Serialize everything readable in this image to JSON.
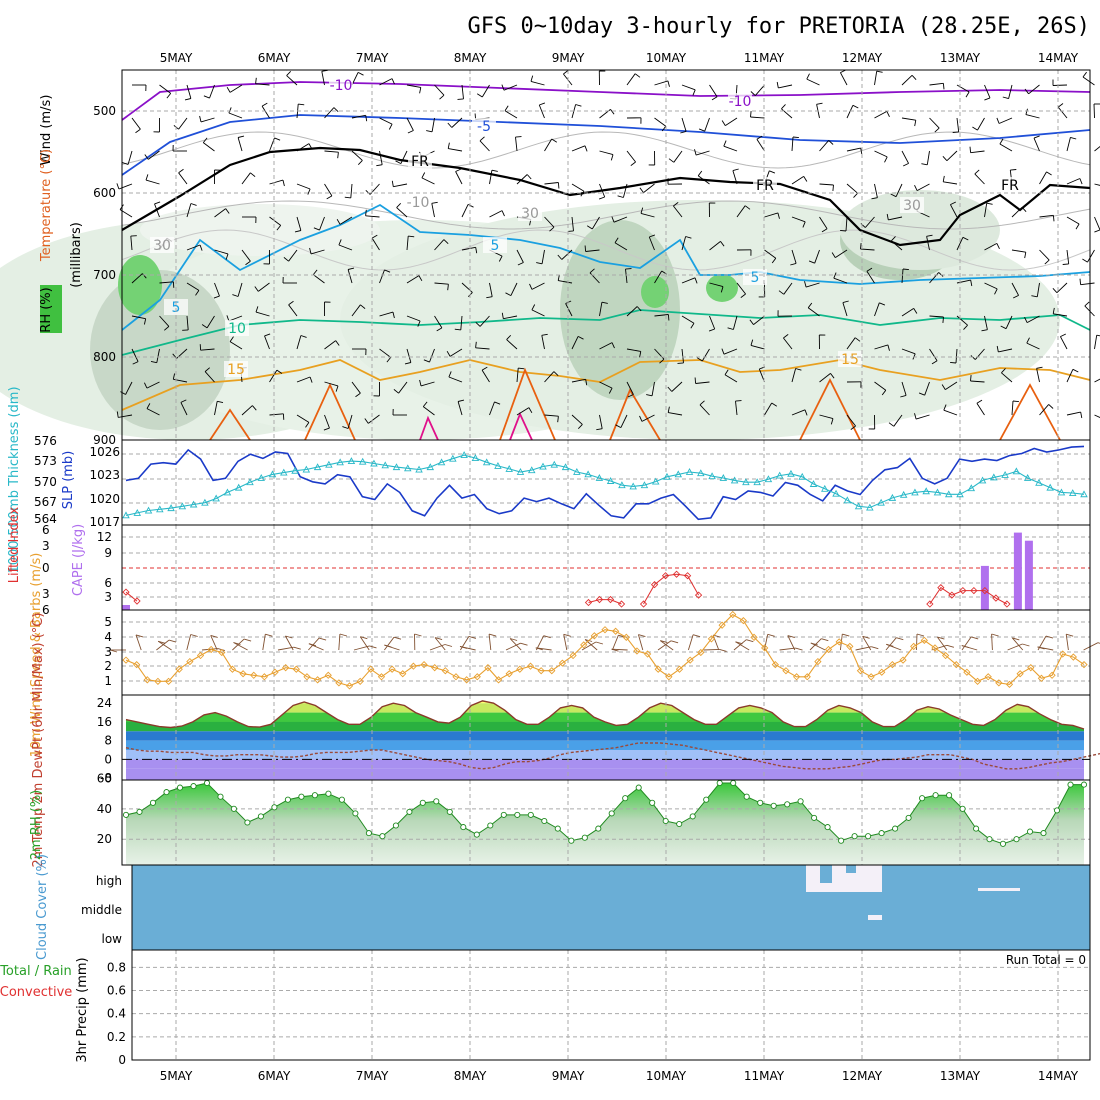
{
  "title": "GFS 0~10day 3-hourly for PRETORIA (28.25E, 26S)",
  "colors": {
    "purple_isotherm": "#8a10c8",
    "blue_isotherm": "#2050d8",
    "lightblue_isotherm": "#1aa0e0",
    "teal_isotherm": "#10b88a",
    "orange_isotherm": "#e8a020",
    "darkorange_isotherm": "#e86010",
    "magenta_isotherm": "#e0108a",
    "slp_line": "#1a3ac8",
    "thickness_line": "#28b8c8",
    "cape_bar": "#b070ee",
    "lifted_index": "#e03030",
    "wind_speed": "#e8a030",
    "barbs": "#805030",
    "temp_line": "#8a3a2a",
    "dewpoint": "#9a4a3a",
    "rh_fill": "#3ac83a",
    "cloud": "#6aaed6"
  },
  "chart_data": [
    {
      "type": "heatmap",
      "panel": "cross_section",
      "ylabel": "(millibars)",
      "legend_labels": [
        "RH (%)",
        "Temperature (°C)",
        "Wind (m/s)"
      ],
      "y_ticks": [
        "500",
        "600",
        "700",
        "800",
        "900"
      ],
      "contour_labels": [
        "-10",
        "-10",
        "-5",
        "FR",
        "FR",
        "FR",
        "-10",
        "30",
        "30",
        "30",
        "5",
        "5",
        "5",
        "10",
        "15",
        "15"
      ]
    },
    {
      "type": "line",
      "panel": "slp_thickness",
      "ylabel_left": "1000-500mb Thickness (dm)",
      "ylabel_right": "SLP (mb)",
      "left_ticks": [
        "576",
        "573",
        "570",
        "567",
        "564"
      ],
      "right_ticks": [
        "1026",
        "1023",
        "1020",
        "1017"
      ],
      "series": [
        {
          "name": "SLP (mb)",
          "values": [
            1022.5,
            1022.8,
            1024.8,
            1025.0,
            1024.8,
            1026.8,
            1025.5,
            1022.5,
            1022.8,
            1025.2,
            1026.2,
            1025.6,
            1026.5,
            1026.3,
            1023.0,
            1022.3,
            1022.0,
            1023.3,
            1023.0,
            1020.2,
            1019.8,
            1022.0,
            1020.8,
            1018.2,
            1017.5,
            1020.0,
            1021.8,
            1020.0,
            1020.5,
            1018.5,
            1017.8,
            1018.2,
            1020.0,
            1019.5,
            1020.0,
            1019.2,
            1018.5,
            1020.6,
            1019.0,
            1017.5,
            1017.2,
            1019.2,
            1019.2,
            1020.0,
            1020.5,
            1018.8,
            1017.0,
            1017.2,
            1020.2,
            1019.8,
            1021.0,
            1020.8,
            1020.3,
            1022.2,
            1021.8,
            1020.5,
            1019.6,
            1021.8,
            1021.0,
            1020.5,
            1022.5,
            1024.0,
            1024.3,
            1025.6,
            1022.8,
            1022.0,
            1022.8,
            1025.5,
            1025.2,
            1025.5,
            1025.3,
            1026.0,
            1026.3,
            1027.0,
            1026.5,
            1026.8,
            1027.2,
            1027.3
          ]
        },
        {
          "name": "1000-500mb Thickness (dm)",
          "values": [
            564.8,
            565.2,
            565.6,
            565.8,
            566.0,
            566.3,
            566.6,
            566.9,
            567.6,
            568.6,
            569.4,
            570.3,
            571.0,
            571.6,
            571.9,
            572.2,
            572.4,
            572.8,
            573.2,
            573.6,
            573.8,
            573.7,
            573.4,
            573.1,
            572.8,
            572.6,
            572.4,
            572.8,
            573.6,
            574.2,
            574.8,
            574.3,
            573.6,
            573.0,
            572.5,
            572.0,
            572.3,
            572.9,
            573.2,
            572.8,
            572.0,
            571.6,
            571.0,
            570.5,
            569.8,
            569.6,
            569.8,
            570.4,
            571.2,
            571.6,
            572.0,
            571.8,
            571.3,
            571.0,
            570.6,
            570.3,
            570.3,
            570.8,
            571.4,
            571.7,
            571.2,
            570.0,
            569.2,
            568.4,
            567.3,
            566.3,
            566.1,
            566.9,
            567.7,
            568.2,
            568.6,
            568.8,
            568.6,
            568.3,
            568.3,
            569.3,
            570.6,
            571.1,
            571.5,
            572.1,
            571.0,
            570.2,
            569.4,
            568.6,
            568.5,
            568.3
          ]
        }
      ]
    },
    {
      "type": "bar",
      "panel": "cape_lifted",
      "ylabel_left": "Lifted Index",
      "ylabel_right": "CAPE (J/kg)",
      "left_ticks": [
        "6",
        "3",
        "0",
        "3",
        "6"
      ],
      "right_ticks": [
        "12",
        "9",
        "6",
        "3"
      ],
      "series": [
        {
          "name": "CAPE (J/kg)",
          "values": [
            0.8,
            0,
            0,
            0,
            0,
            0,
            0,
            0,
            0,
            0,
            0,
            0,
            0,
            0,
            0,
            0,
            0,
            0,
            0,
            0,
            0,
            0,
            0,
            0,
            0,
            0,
            0,
            0,
            0,
            0,
            0,
            0,
            0,
            0,
            0,
            0,
            0,
            0,
            0,
            0,
            0,
            0,
            0,
            0,
            0,
            0,
            0,
            0,
            0,
            0,
            0,
            0,
            0,
            0,
            0,
            0,
            0,
            0,
            0,
            0,
            0,
            0,
            0,
            0,
            0,
            0,
            0,
            0,
            0,
            0,
            0,
            0,
            0,
            0,
            0,
            0,
            0,
            0,
            7.0,
            0,
            0,
            12.3,
            11.0,
            0,
            0,
            0,
            0,
            0
          ]
        },
        {
          "name": "Lifted Index",
          "values": [
            5.1,
            5.7,
            null,
            null,
            null,
            null,
            null,
            null,
            null,
            null,
            null,
            null,
            null,
            null,
            null,
            null,
            null,
            null,
            null,
            null,
            null,
            null,
            null,
            null,
            null,
            null,
            null,
            null,
            null,
            null,
            null,
            null,
            null,
            null,
            null,
            null,
            null,
            null,
            null,
            null,
            null,
            null,
            5.8,
            5.6,
            5.6,
            5.9,
            null,
            5.9,
            4.6,
            4.0,
            3.9,
            4.0,
            5.3,
            null,
            null,
            null,
            null,
            null,
            null,
            null,
            null,
            null,
            null,
            null,
            null,
            null,
            null,
            null,
            null,
            null,
            null,
            null,
            null,
            5.9,
            4.8,
            5.3,
            5.0,
            5.0,
            5.0,
            5.5,
            5.9,
            null,
            null,
            null,
            null,
            null,
            null,
            null
          ]
        }
      ]
    },
    {
      "type": "line",
      "panel": "wind10m",
      "ylabel": "10m Wind Speed & Barbs (m/s)",
      "y_ticks": [
        "5",
        "4",
        "3",
        "2",
        "1"
      ],
      "series": [
        {
          "name": "10m Wind Speed",
          "values": [
            2.3,
            2.0,
            1.0,
            0.9,
            0.9,
            1.7,
            2.2,
            2.6,
            3.0,
            2.8,
            1.7,
            1.4,
            1.3,
            1.2,
            1.5,
            1.8,
            1.7,
            1.2,
            1.0,
            1.3,
            0.8,
            0.6,
            0.9,
            1.7,
            1.2,
            1.7,
            1.4,
            1.9,
            2.0,
            1.8,
            1.6,
            1.2,
            1.0,
            1.2,
            1.8,
            1.0,
            1.4,
            1.7,
            1.9,
            1.6,
            1.6,
            2.1,
            2.6,
            3.3,
            3.9,
            4.3,
            4.2,
            3.8,
            2.9,
            2.7,
            1.7,
            1.2,
            1.7,
            2.3,
            2.8,
            3.7,
            4.6,
            5.3,
            4.9,
            3.8,
            3.1,
            2.0,
            1.6,
            1.2,
            1.2,
            2.2,
            3.0,
            3.5,
            3.2,
            1.6,
            1.2,
            1.5,
            2.0,
            2.3,
            3.2,
            3.6,
            3.1,
            2.6,
            2.0,
            1.5,
            0.9,
            1.2,
            0.8,
            0.7,
            1.4,
            1.8,
            1.1,
            1.3,
            2.7,
            2.5,
            2.0
          ]
        }
      ]
    },
    {
      "type": "area",
      "panel": "temp_dewpoint",
      "ylabel": "2m Temp 2m DewPt (6hr Min/Max) (°C)",
      "y_ticks": [
        "24",
        "16",
        "8",
        "0",
        "-8"
      ],
      "series": [
        {
          "name": "2m Temp",
          "values": [
            17,
            16,
            15,
            14,
            13.6,
            14.2,
            16,
            19,
            20,
            18.5,
            16,
            14,
            13.8,
            15,
            19,
            23,
            24.5,
            23,
            20,
            17,
            15,
            15,
            18,
            22.5,
            24,
            23,
            20,
            18,
            16,
            15.5,
            18,
            23,
            25,
            24,
            21,
            17,
            15,
            15,
            18,
            22,
            23,
            22,
            18,
            16,
            14.5,
            15,
            18,
            22,
            24,
            23,
            20,
            17,
            15,
            15,
            18.5,
            22,
            23,
            22,
            20,
            16,
            14,
            14,
            17,
            21,
            23,
            22,
            20,
            16,
            14,
            14,
            17,
            21,
            22.5,
            21.5,
            19,
            17,
            15,
            14.5,
            17,
            21,
            23.5,
            22.5,
            19.5,
            17,
            15,
            14.5,
            13
          ]
        },
        {
          "name": "2m DewPt",
          "values": [
            5,
            4,
            3.5,
            3.5,
            3,
            3,
            3,
            2,
            1.5,
            1.5,
            2,
            2,
            2,
            1.5,
            1,
            1,
            1.5,
            2.5,
            3,
            3,
            3,
            3.5,
            4,
            4,
            3,
            2,
            1,
            0,
            -0.5,
            -1,
            -2,
            -3.5,
            -4,
            -3.5,
            -2,
            -1,
            -1,
            -0.5,
            0.5,
            2,
            3,
            3.5,
            4,
            4.5,
            5,
            6,
            7,
            7,
            7,
            6.5,
            6,
            5,
            4,
            3,
            2,
            1,
            0,
            -1,
            -2,
            -3,
            -3.5,
            -4,
            -4,
            -4,
            -3.5,
            -3,
            -2,
            -1,
            0,
            0,
            0.5,
            1,
            2,
            2,
            2,
            1,
            0,
            -2,
            -3,
            -4,
            -4,
            -3.5,
            -2.5,
            -1.5,
            -1,
            0,
            1,
            2,
            3,
            4,
            5.5
          ]
        }
      ]
    },
    {
      "type": "area",
      "panel": "rh2m",
      "ylabel": "2m RH (%)",
      "y_ticks": [
        "60",
        "40",
        "20"
      ],
      "series": [
        {
          "name": "2m RH",
          "values": [
            36,
            38,
            44,
            51,
            54,
            55,
            57,
            48,
            40,
            31,
            35,
            41,
            46,
            48,
            49,
            50,
            46,
            37,
            24,
            22,
            29,
            38,
            44,
            45,
            38,
            28,
            23,
            29,
            36,
            36,
            36,
            32,
            27,
            19,
            21,
            27,
            37,
            47,
            54,
            44,
            32,
            30,
            35,
            46,
            57,
            57,
            48,
            44,
            42,
            43,
            45,
            34,
            28,
            19,
            22,
            22,
            24,
            27,
            34,
            47,
            49,
            49,
            40,
            27,
            20,
            17,
            20,
            25,
            24,
            39,
            56,
            56
          ]
        }
      ]
    },
    {
      "type": "heatmap",
      "panel": "cloud_cover",
      "ylabel": "Cloud Cover (%)",
      "y_ticks": [
        "high",
        "middle",
        "low"
      ]
    },
    {
      "type": "line",
      "panel": "precip",
      "ylabel_left": "Total / Rain Convective",
      "ylabel": "3hr Precip (mm)",
      "annotation": "Run Total = 0",
      "y_ticks": [
        "0.8",
        "0.6",
        "0.4",
        "0.2",
        "0"
      ],
      "series": []
    }
  ],
  "x_axis": {
    "tick_labels": [
      "5MAY",
      "6MAY",
      "7MAY",
      "8MAY",
      "9MAY",
      "10MAY",
      "11MAY",
      "12MAY",
      "13MAY",
      "14MAY"
    ]
  }
}
